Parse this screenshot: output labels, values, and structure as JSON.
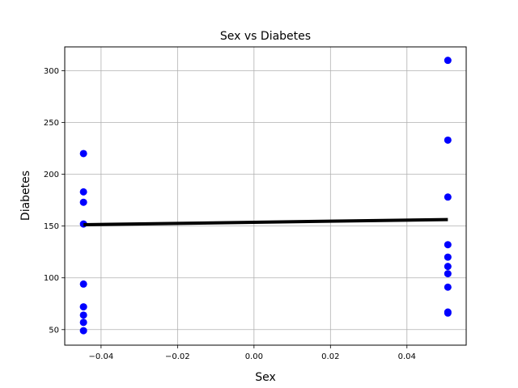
{
  "chart_data": {
    "type": "scatter",
    "title": "Sex vs Diabetes",
    "xlabel": "Sex",
    "ylabel": "Diabetes",
    "xlim": [
      -0.0495,
      0.0555
    ],
    "ylim": [
      35,
      323
    ],
    "xticks": [
      -0.04,
      -0.02,
      0.0,
      0.02,
      0.04
    ],
    "xtick_labels": [
      "−0.04",
      "−0.02",
      "0.00",
      "0.02",
      "0.04"
    ],
    "yticks": [
      50,
      100,
      150,
      200,
      250,
      300
    ],
    "ytick_labels": [
      "50",
      "100",
      "150",
      "200",
      "250",
      "300"
    ],
    "grid": true,
    "point_color": "#0000ff",
    "line_color": "#000000",
    "series": [
      {
        "type": "scatter",
        "points": [
          {
            "x": -0.0446,
            "y": 220
          },
          {
            "x": -0.0446,
            "y": 183
          },
          {
            "x": -0.0446,
            "y": 173
          },
          {
            "x": -0.0446,
            "y": 152
          },
          {
            "x": -0.0446,
            "y": 94
          },
          {
            "x": -0.0446,
            "y": 72
          },
          {
            "x": -0.0446,
            "y": 64
          },
          {
            "x": -0.0446,
            "y": 57
          },
          {
            "x": -0.0446,
            "y": 49
          },
          {
            "x": 0.0507,
            "y": 310
          },
          {
            "x": 0.0507,
            "y": 233
          },
          {
            "x": 0.0507,
            "y": 178
          },
          {
            "x": 0.0507,
            "y": 132
          },
          {
            "x": 0.0507,
            "y": 120
          },
          {
            "x": 0.0507,
            "y": 111
          },
          {
            "x": 0.0507,
            "y": 104
          },
          {
            "x": 0.0507,
            "y": 91
          },
          {
            "x": 0.0507,
            "y": 67
          },
          {
            "x": 0.0507,
            "y": 66
          }
        ]
      },
      {
        "type": "line",
        "points": [
          {
            "x": -0.0446,
            "y": 151.3
          },
          {
            "x": 0.0507,
            "y": 156.3
          }
        ]
      }
    ]
  }
}
